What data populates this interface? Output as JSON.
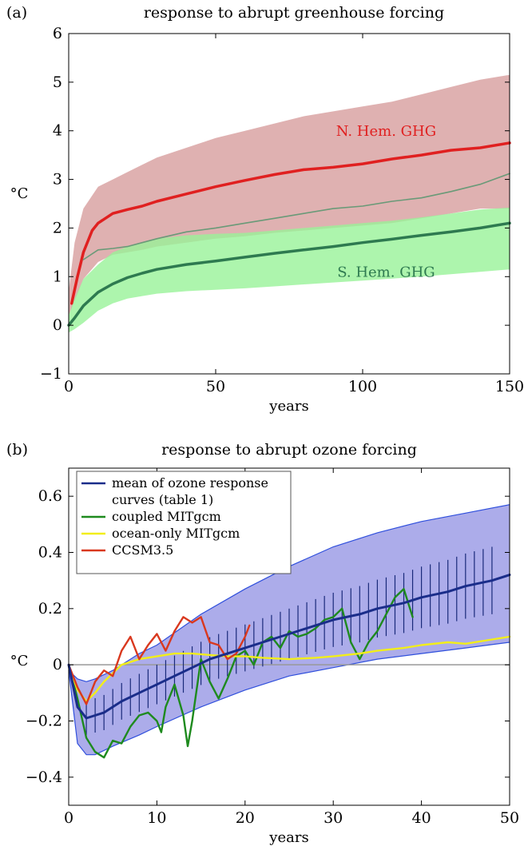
{
  "chart_data": [
    {
      "id": "a",
      "panel_label": "(a)",
      "type": "line",
      "title": "response to abrupt greenhouse forcing",
      "xlabel": "years",
      "ylabel": "°C",
      "xlim": [
        0,
        150
      ],
      "ylim": [
        -1,
        6
      ],
      "xticks": [
        0,
        50,
        100,
        150
      ],
      "yticks": [
        -1,
        0,
        1,
        2,
        3,
        4,
        5,
        6
      ],
      "ytick_labels": [
        "−1",
        "0",
        "1",
        "2",
        "3",
        "4",
        "5",
        "6"
      ],
      "grid": false,
      "bands": [
        {
          "name_ref": "N. Hem. GHG",
          "color": "#d9a3a3",
          "x": [
            0,
            2,
            5,
            10,
            15,
            20,
            25,
            30,
            40,
            50,
            60,
            70,
            80,
            90,
            100,
            110,
            120,
            130,
            140,
            150
          ],
          "lower": [
            0.2,
            0.5,
            0.95,
            1.3,
            1.45,
            1.5,
            1.55,
            1.62,
            1.7,
            1.78,
            1.83,
            1.9,
            1.95,
            2.0,
            2.05,
            2.1,
            2.2,
            2.3,
            2.4,
            2.4
          ],
          "upper": [
            0.7,
            1.7,
            2.4,
            2.85,
            3.0,
            3.15,
            3.3,
            3.45,
            3.65,
            3.85,
            4.0,
            4.15,
            4.3,
            4.4,
            4.5,
            4.6,
            4.75,
            4.9,
            5.05,
            5.15
          ]
        },
        {
          "name_ref": "S. Hem. GHG",
          "color": "#99f299",
          "x": [
            0,
            2,
            5,
            10,
            15,
            20,
            25,
            30,
            40,
            50,
            60,
            70,
            80,
            90,
            100,
            110,
            120,
            130,
            140,
            150
          ],
          "lower": [
            -0.15,
            -0.08,
            0.05,
            0.3,
            0.45,
            0.55,
            0.6,
            0.65,
            0.7,
            0.73,
            0.76,
            0.8,
            0.84,
            0.88,
            0.92,
            0.96,
            1.0,
            1.05,
            1.1,
            1.15
          ],
          "upper": [
            0.2,
            0.55,
            0.95,
            1.25,
            1.5,
            1.62,
            1.7,
            1.78,
            1.85,
            1.88,
            1.9,
            1.95,
            2.0,
            2.05,
            2.1,
            2.15,
            2.22,
            2.3,
            2.38,
            2.42
          ]
        }
      ],
      "series": [
        {
          "name": "N. Hem. GHG",
          "color": "#e02020",
          "width": 3.5,
          "x": [
            1,
            3,
            5,
            8,
            10,
            15,
            20,
            25,
            30,
            40,
            50,
            60,
            70,
            80,
            90,
            100,
            110,
            120,
            130,
            140,
            150
          ],
          "y": [
            0.45,
            1.0,
            1.5,
            1.95,
            2.1,
            2.3,
            2.38,
            2.45,
            2.55,
            2.7,
            2.85,
            2.98,
            3.1,
            3.2,
            3.25,
            3.32,
            3.42,
            3.5,
            3.6,
            3.65,
            3.75
          ]
        },
        {
          "name": "",
          "color": "#6a9a78",
          "width": 1.6,
          "x": [
            5,
            10,
            15,
            20,
            25,
            30,
            40,
            50,
            60,
            70,
            80,
            90,
            100,
            110,
            120,
            130,
            140,
            150
          ],
          "y": [
            1.35,
            1.55,
            1.58,
            1.62,
            1.7,
            1.78,
            1.92,
            2.0,
            2.1,
            2.2,
            2.3,
            2.4,
            2.45,
            2.55,
            2.62,
            2.75,
            2.9,
            3.12
          ]
        },
        {
          "name": "S. Hem. GHG",
          "color": "#2e7a50",
          "width": 3.5,
          "x": [
            0,
            2,
            5,
            10,
            15,
            20,
            25,
            30,
            40,
            50,
            60,
            70,
            80,
            90,
            100,
            110,
            120,
            130,
            140,
            150
          ],
          "y": [
            0.0,
            0.15,
            0.4,
            0.68,
            0.85,
            0.98,
            1.07,
            1.15,
            1.25,
            1.32,
            1.4,
            1.48,
            1.55,
            1.62,
            1.7,
            1.77,
            1.85,
            1.92,
            2.0,
            2.1
          ]
        }
      ]
    },
    {
      "id": "b",
      "panel_label": "(b)",
      "type": "line",
      "title": "response to abrupt ozone forcing",
      "xlabel": "years",
      "ylabel": "°C",
      "xlim": [
        0,
        50
      ],
      "ylim": [
        -0.5,
        0.7
      ],
      "xticks": [
        0,
        10,
        20,
        30,
        40,
        50
      ],
      "yticks": [
        -0.4,
        -0.2,
        0,
        0.2,
        0.4,
        0.6
      ],
      "ytick_labels": [
        "−0.4",
        "−0.2",
        "0",
        "0.2",
        "0.4",
        "0.6"
      ],
      "grid": false,
      "zero_line": true,
      "legend_position": "top-left",
      "band": {
        "color": "#a3a3e8",
        "edge_color": "#2f4fdc",
        "x": [
          0,
          1,
          2,
          3,
          5,
          8,
          10,
          15,
          20,
          25,
          30,
          35,
          40,
          45,
          50
        ],
        "lower": [
          -0.02,
          -0.28,
          -0.32,
          -0.32,
          -0.29,
          -0.25,
          -0.22,
          -0.15,
          -0.09,
          -0.04,
          -0.01,
          0.02,
          0.04,
          0.06,
          0.08
        ],
        "upper": [
          -0.02,
          -0.05,
          -0.06,
          -0.05,
          -0.02,
          0.04,
          0.07,
          0.18,
          0.27,
          0.35,
          0.42,
          0.47,
          0.51,
          0.54,
          0.57
        ]
      },
      "error_bars": {
        "color": "#1a2a7a",
        "x": [
          2,
          3,
          4,
          5,
          6,
          7,
          8,
          9,
          10,
          11,
          12,
          13,
          14,
          15,
          16,
          17,
          18,
          19,
          20,
          21,
          22,
          23,
          24,
          25,
          26,
          27,
          28,
          29,
          30,
          31,
          32,
          33,
          34,
          35,
          36,
          37,
          38,
          39,
          40,
          41,
          42,
          43,
          44,
          45,
          46,
          47,
          48
        ],
        "spread_start": 0.06,
        "spread_end": 0.12
      },
      "series": [
        {
          "name": "mean of ozone response curves (table 1)",
          "legend_lines": [
            "mean of ozone response",
            "curves (table 1)"
          ],
          "color": "#1a2d8a",
          "width": 3,
          "x": [
            0,
            1,
            2,
            3,
            4,
            5,
            6,
            8,
            10,
            12,
            14,
            16,
            18,
            20,
            22,
            25,
            28,
            30,
            33,
            35,
            38,
            40,
            43,
            45,
            48,
            50
          ],
          "y": [
            0,
            -0.15,
            -0.19,
            -0.18,
            -0.17,
            -0.15,
            -0.13,
            -0.1,
            -0.07,
            -0.04,
            -0.01,
            0.02,
            0.04,
            0.06,
            0.08,
            0.11,
            0.14,
            0.16,
            0.18,
            0.2,
            0.22,
            0.24,
            0.26,
            0.28,
            0.3,
            0.32
          ]
        },
        {
          "name": "coupled MITgcm",
          "legend_lines": [
            "coupled MITgcm"
          ],
          "color": "#1e8a1e",
          "width": 2.4,
          "x": [
            0,
            1,
            2,
            3,
            4,
            5,
            6,
            7,
            8,
            9,
            10,
            10.5,
            11,
            12,
            13,
            13.5,
            14,
            15,
            16,
            17,
            18,
            19,
            20,
            21,
            22,
            23,
            24,
            25,
            26,
            27,
            28,
            29,
            30,
            31,
            32,
            33,
            34,
            35,
            36,
            37,
            38,
            39
          ],
          "y": [
            0,
            -0.12,
            -0.26,
            -0.31,
            -0.33,
            -0.27,
            -0.28,
            -0.22,
            -0.18,
            -0.17,
            -0.2,
            -0.24,
            -0.15,
            -0.07,
            -0.18,
            -0.29,
            -0.2,
            0.02,
            -0.06,
            -0.12,
            -0.05,
            0.03,
            0.05,
            0.0,
            0.08,
            0.1,
            0.06,
            0.12,
            0.1,
            0.11,
            0.13,
            0.16,
            0.17,
            0.2,
            0.08,
            0.02,
            0.08,
            0.12,
            0.18,
            0.24,
            0.27,
            0.17
          ]
        },
        {
          "name": "ocean-only MITgcm",
          "legend_lines": [
            "ocean-only MITgcm"
          ],
          "color": "#f2ee1a",
          "width": 2.4,
          "x": [
            0,
            1,
            2,
            3,
            4,
            5,
            6,
            8,
            10,
            12,
            14,
            16,
            18,
            20,
            22,
            25,
            28,
            30,
            33,
            35,
            38,
            40,
            43,
            45,
            48,
            50
          ],
          "y": [
            0,
            -0.09,
            -0.13,
            -0.1,
            -0.06,
            -0.03,
            0.0,
            0.02,
            0.03,
            0.04,
            0.04,
            0.035,
            0.03,
            0.03,
            0.025,
            0.02,
            0.025,
            0.03,
            0.04,
            0.05,
            0.06,
            0.07,
            0.08,
            0.075,
            0.09,
            0.1
          ]
        },
        {
          "name": "CCSM3.5",
          "legend_lines": [
            "CCSM3.5"
          ],
          "color": "#d9381e",
          "width": 2.4,
          "x": [
            0,
            1,
            2,
            3,
            4,
            5,
            6,
            7,
            8,
            9,
            10,
            11,
            12,
            13,
            14,
            15,
            16,
            17,
            18,
            19,
            20,
            20.5
          ],
          "y": [
            0,
            -0.08,
            -0.14,
            -0.06,
            -0.02,
            -0.04,
            0.05,
            0.1,
            0.02,
            0.07,
            0.11,
            0.05,
            0.12,
            0.17,
            0.15,
            0.17,
            0.08,
            0.07,
            0.02,
            0.04,
            0.1,
            0.14
          ]
        }
      ]
    }
  ]
}
